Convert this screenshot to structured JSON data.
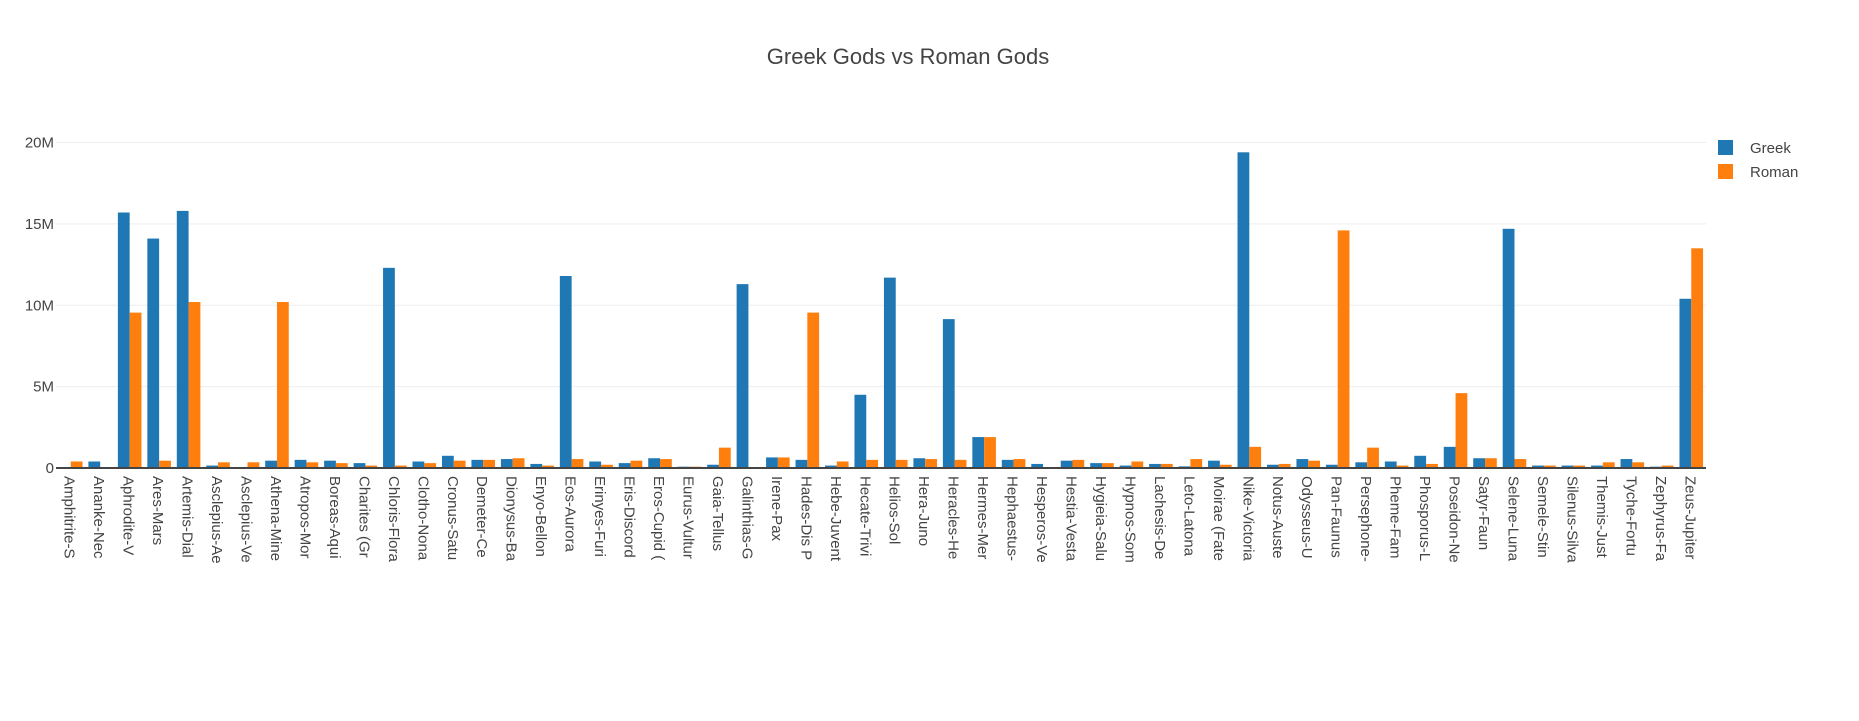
{
  "chart_data": {
    "type": "bar",
    "title": "Greek Gods vs Roman Gods",
    "xlabel": "",
    "ylabel": "",
    "ylim": [
      0,
      22000000
    ],
    "yticks": [
      0,
      5000000,
      10000000,
      15000000,
      20000000
    ],
    "ytick_labels": [
      "0",
      "5M",
      "10M",
      "15M",
      "20M"
    ],
    "grid": true,
    "legend_position": "top-right",
    "categories": [
      "Amphitrite-S",
      "Ananke-Nec",
      "Aphrodite-V",
      "Ares-Mars",
      "Artemis-Dial",
      "Asclepius-Ae",
      "Asclepius-Ve",
      "Athena-Mine",
      "Atropos-Mor",
      "Boreas-Aqui",
      "Charites (Gr",
      "Chloris-Flora",
      "Clotho-Nona",
      "Cronus-Satu",
      "Demeter-Ce",
      "Dionysus-Ba",
      "Enyo-Bellon",
      "Eos-Aurora",
      "Erinyes-Furi",
      "Eris-Discord",
      "Eros-Cupid (",
      "Eurus-Vultur",
      "Gaia-Tellus",
      "Galinthias-G",
      "Irene-Pax",
      "Hades-Dis P",
      "Hebe-Juvent",
      "Hecate-Trivi",
      "Helios-Sol",
      "Hera-Juno",
      "Heracles-He",
      "Hermes-Mer",
      "Hephaestus-",
      "Hesperos-Ve",
      "Hestia-Vesta",
      "Hygieia-Salu",
      "Hypnos-Som",
      "Lachesis-De",
      "Leto-Latona",
      "Moirae (Fate",
      "Nike-Victoria",
      "Notus-Auste",
      "Odysseus-U",
      "Pan-Faunus",
      "Persephone-",
      "Pheme-Fam",
      "Phosporus-L",
      "Poseidon-Ne",
      "Satyr-Faun",
      "Selene-Luna",
      "Semele-Stin",
      "Silenus-Silva",
      "Themis-Just",
      "Tyche-Fortu",
      "Zephyrus-Fa",
      "Zeus-Jupiter"
    ],
    "series": [
      {
        "name": "Greek",
        "color": "#1f77b4",
        "values": [
          30000,
          400000,
          15700000,
          14100000,
          15800000,
          150000,
          50000,
          450000,
          500000,
          450000,
          300000,
          12300000,
          400000,
          750000,
          500000,
          550000,
          250000,
          11800000,
          400000,
          300000,
          600000,
          80000,
          200000,
          11300000,
          650000,
          500000,
          150000,
          4500000,
          11700000,
          600000,
          9150000,
          1900000,
          500000,
          250000,
          450000,
          300000,
          150000,
          250000,
          100000,
          450000,
          19400000,
          200000,
          550000,
          200000,
          350000,
          400000,
          750000,
          1300000,
          600000,
          14700000,
          150000,
          150000,
          150000,
          550000,
          80000,
          10400000
        ]
      },
      {
        "name": "Roman",
        "color": "#ff7f0e",
        "values": [
          400000,
          50000,
          9550000,
          450000,
          10200000,
          350000,
          350000,
          10200000,
          350000,
          300000,
          150000,
          150000,
          300000,
          450000,
          500000,
          600000,
          150000,
          550000,
          200000,
          450000,
          550000,
          80000,
          1250000,
          50000,
          650000,
          9550000,
          400000,
          500000,
          500000,
          550000,
          500000,
          1900000,
          550000,
          50000,
          500000,
          300000,
          400000,
          250000,
          550000,
          200000,
          1300000,
          250000,
          450000,
          14600000,
          1250000,
          150000,
          250000,
          4600000,
          600000,
          550000,
          150000,
          150000,
          350000,
          350000,
          150000,
          13500000
        ]
      }
    ]
  }
}
